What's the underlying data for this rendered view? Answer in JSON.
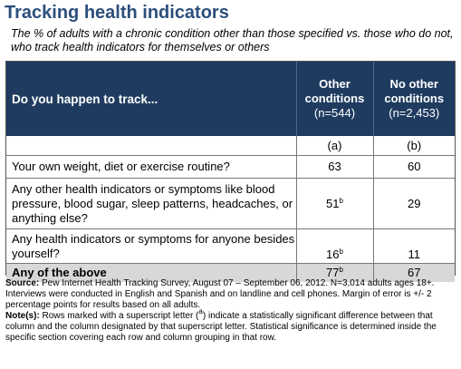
{
  "title": "Tracking health indicators",
  "subtitle": "The % of adults with a chronic condition other than those specified vs. those who do not, who track health indicators for themselves or others",
  "table": {
    "question_header": "Do you happen to track...",
    "columns": [
      {
        "line1": "Other",
        "line2": "conditions",
        "n": "(n=544)",
        "tag": "(a)"
      },
      {
        "line1": "No other",
        "line2": "conditions",
        "n": "(n=2,453)",
        "tag": "(b)"
      }
    ],
    "rows": [
      {
        "label": "Your own weight, diet or exercise routine?",
        "a": "63",
        "a_sup": "",
        "b": "60"
      },
      {
        "label": "Any other health indicators or symptoms like blood pressure, blood sugar, sleep patterns, headcaches, or anything else?",
        "a": "51",
        "a_sup": "b",
        "b": "29"
      },
      {
        "label": "Any health indicators or symptoms for anyone besides yourself?",
        "a": "16",
        "a_sup": "b",
        "b": "11"
      },
      {
        "label": "Any of the above",
        "a": "77",
        "a_sup": "b",
        "b": "67"
      }
    ]
  },
  "notes": {
    "source_label": "Source:",
    "source_text": " Pew Internet Health Tracking Survey, August 07 – September 06, 2012. N=3,014 adults ages 18+. Interviews were conducted in English and Spanish and on landline and cell phones. Margin of error is +/- 2 percentage points for results based on all adults.",
    "note_label": "Note(s):",
    "note_text_before": " Rows marked with a superscript letter (",
    "note_sup": "a",
    "note_text_after": ") indicate a statistically significant difference between that column and the column designated by that superscript letter. Statistical significance is determined inside the specific section covering each row and column grouping in that row."
  }
}
